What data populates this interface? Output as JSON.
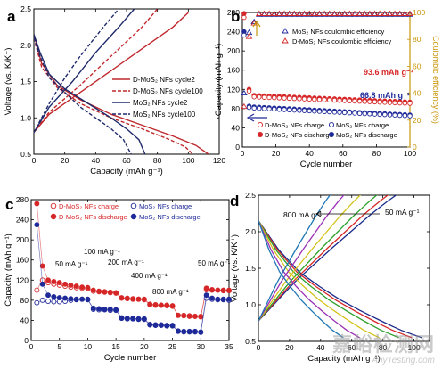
{
  "watermark": {
    "line1": "嘉峪检测网",
    "line2": "AnyTesting.com"
  },
  "chart_data": [
    {
      "panel": "a",
      "type": "line",
      "xlabel": "Capacity (mAh g⁻¹)",
      "ylabel": "Voltage (vs. K/K⁺)",
      "xlim": [
        0,
        120
      ],
      "ylim": [
        0.5,
        2.5
      ],
      "xticks": [
        0,
        20,
        40,
        60,
        80,
        100,
        120
      ],
      "yticks": [
        0.5,
        1.0,
        1.5,
        2.0,
        2.5
      ],
      "legend_position": "right",
      "series": [
        {
          "name": "D-MoS₂ NFs cycle2",
          "color": "#c0282d",
          "dash": false,
          "discharge": [
            [
              0,
              2.15
            ],
            [
              5,
              1.75
            ],
            [
              15,
              1.45
            ],
            [
              30,
              1.25
            ],
            [
              50,
              1.05
            ],
            [
              70,
              0.9
            ],
            [
              90,
              0.75
            ],
            [
              105,
              0.62
            ],
            [
              113,
              0.5
            ]
          ],
          "charge": [
            [
              0,
              0.8
            ],
            [
              10,
              1.05
            ],
            [
              30,
              1.35
            ],
            [
              50,
              1.65
            ],
            [
              70,
              1.95
            ],
            [
              90,
              2.25
            ],
            [
              100,
              2.45
            ]
          ]
        },
        {
          "name": "D-MoS₂ NFs cycle100",
          "color": "#c0282d",
          "dash": true,
          "discharge": [
            [
              0,
              2.1
            ],
            [
              5,
              1.7
            ],
            [
              15,
              1.42
            ],
            [
              30,
              1.2
            ],
            [
              50,
              1.0
            ],
            [
              70,
              0.85
            ],
            [
              88,
              0.7
            ],
            [
              98,
              0.6
            ],
            [
              103,
              0.5
            ]
          ],
          "charge": [
            [
              0,
              0.8
            ],
            [
              10,
              1.08
            ],
            [
              30,
              1.45
            ],
            [
              50,
              1.85
            ],
            [
              70,
              2.25
            ],
            [
              80,
              2.5
            ]
          ]
        },
        {
          "name": "MoS₂ NFs cycle2",
          "color": "#1f2a6b",
          "dash": false,
          "discharge": [
            [
              0,
              2.15
            ],
            [
              4,
              1.9
            ],
            [
              10,
              1.6
            ],
            [
              20,
              1.4
            ],
            [
              35,
              1.2
            ],
            [
              50,
              1.0
            ],
            [
              60,
              0.85
            ],
            [
              68,
              0.7
            ],
            [
              72,
              0.5
            ]
          ],
          "charge": [
            [
              0,
              0.8
            ],
            [
              10,
              1.15
            ],
            [
              25,
              1.5
            ],
            [
              40,
              1.9
            ],
            [
              55,
              2.25
            ],
            [
              65,
              2.5
            ]
          ]
        },
        {
          "name": "MoS₂ NFs cycle100",
          "color": "#1f2a6b",
          "dash": true,
          "discharge": [
            [
              0,
              2.1
            ],
            [
              4,
              1.85
            ],
            [
              10,
              1.55
            ],
            [
              20,
              1.35
            ],
            [
              30,
              1.15
            ],
            [
              40,
              1.0
            ],
            [
              50,
              0.85
            ],
            [
              58,
              0.7
            ],
            [
              63,
              0.5
            ]
          ],
          "charge": [
            [
              0,
              0.8
            ],
            [
              10,
              1.2
            ],
            [
              20,
              1.55
            ],
            [
              30,
              1.85
            ],
            [
              45,
              2.25
            ],
            [
              55,
              2.5
            ]
          ]
        }
      ]
    },
    {
      "panel": "b",
      "type": "scatter",
      "xlabel": "Cycle number",
      "ylabel": "Capacity (mAh g⁻¹)",
      "y2label": "Coulombic efficiency (%)",
      "xlim": [
        0,
        100
      ],
      "ylim": [
        0,
        280
      ],
      "y2lim": [
        0,
        100
      ],
      "xticks": [
        0,
        20,
        40,
        60,
        80,
        100
      ],
      "yticks": [
        0,
        40,
        80,
        120,
        160,
        200,
        240,
        280
      ],
      "y2ticks": [
        0,
        20,
        40,
        60,
        80,
        100
      ],
      "annotations": [
        "93.6 mAh g⁻¹",
        "66.8 mAh g⁻¹"
      ],
      "annotation_colors": [
        "#d62728",
        "#1f2a99"
      ],
      "legend_top": [
        "MoS₂ NFs coulombic efficiency",
        "D-MoS₂ NFs coulombic efficiency"
      ],
      "series": [
        {
          "name": "D-MoS₂ NFs charge",
          "marker": "circle-open",
          "color": "#d62728"
        },
        {
          "name": "D-MoS₂ NFs discharge",
          "marker": "circle-filled",
          "color": "#d62728"
        },
        {
          "name": "MoS₂ NFs charge",
          "marker": "circle-open",
          "color": "#1f2a99"
        },
        {
          "name": "MoS₂ NFs discharge",
          "marker": "circle-filled",
          "color": "#1f2a99"
        }
      ],
      "cycles": {
        "start": 1,
        "end": 100,
        "step": 3
      },
      "capacity_D": {
        "first": 278,
        "second": 120,
        "level_start": 108,
        "level_end": 93.6
      },
      "capacity_M": {
        "first": 240,
        "second": 85,
        "level_start": 84,
        "level_end": 66.8
      },
      "ce_D": {
        "first": 30,
        "second": 82,
        "third": 92,
        "level": 99
      },
      "ce_M": {
        "first": 40,
        "second": 85,
        "third": 93,
        "level": 98.5
      }
    },
    {
      "panel": "c",
      "type": "scatter",
      "xlabel": "Cycle number",
      "ylabel": "Capacity (mAh g⁻¹)",
      "xlim": [
        0,
        35
      ],
      "ylim": [
        0,
        280
      ],
      "xticks": [
        0,
        5,
        10,
        15,
        20,
        25,
        30,
        35
      ],
      "yticks": [
        0,
        40,
        80,
        120,
        160,
        200,
        240,
        280
      ],
      "rate_labels": [
        "50 mA g⁻¹",
        "100 mA g⁻¹",
        "200 mA g⁻¹",
        "400 mA g⁻¹",
        "800 mA g⁻¹",
        "50 mA g⁻¹"
      ],
      "series": [
        {
          "name": "D-MoS₂ NFs charge",
          "marker": "circle-open",
          "color": "#d62728"
        },
        {
          "name": "D-MoS₂ NFs discharge",
          "marker": "circle-filled",
          "color": "#d62728"
        },
        {
          "name": "MoS₂ NFs charge",
          "marker": "circle-open",
          "color": "#1f2a99"
        },
        {
          "name": "MoS₂ NFs discharge",
          "marker": "circle-filled",
          "color": "#1f2a99"
        }
      ],
      "cycles": [
        1,
        2,
        3,
        4,
        5,
        6,
        7,
        8,
        9,
        10,
        11,
        12,
        13,
        14,
        15,
        16,
        17,
        18,
        19,
        20,
        21,
        22,
        23,
        24,
        25,
        26,
        27,
        28,
        29,
        30,
        31,
        32,
        33,
        34,
        35
      ],
      "D_discharge": [
        272,
        148,
        120,
        117,
        115,
        112,
        110,
        108,
        106,
        105,
        100,
        98,
        97,
        96,
        95,
        85,
        84,
        83,
        82,
        82,
        72,
        71,
        70,
        70,
        69,
        50,
        50,
        49,
        48,
        48,
        104,
        101,
        100,
        100,
        100
      ],
      "D_charge": [
        100,
        120,
        115,
        112,
        110,
        108,
        106,
        105,
        104,
        103,
        98,
        97,
        96,
        95,
        94,
        84,
        83,
        82,
        82,
        81,
        71,
        70,
        70,
        69,
        68,
        50,
        49,
        48,
        48,
        47,
        101,
        100,
        100,
        99,
        99
      ],
      "M_discharge": [
        230,
        112,
        90,
        87,
        85,
        84,
        83,
        82,
        82,
        81,
        64,
        63,
        62,
        62,
        61,
        45,
        44,
        44,
        43,
        43,
        32,
        31,
        31,
        30,
        30,
        19,
        18,
        18,
        18,
        17,
        90,
        84,
        82,
        82,
        82
      ],
      "M_charge": [
        75,
        80,
        78,
        77,
        77,
        78,
        80,
        81,
        82,
        82,
        62,
        61,
        61,
        60,
        60,
        44,
        43,
        43,
        42,
        42,
        31,
        30,
        30,
        29,
        29,
        18,
        17,
        17,
        17,
        16,
        84,
        82,
        81,
        81,
        80
      ]
    },
    {
      "panel": "d",
      "type": "line",
      "xlabel": "Capacity (mAh g⁻¹)",
      "ylabel": "Voltage (vs. K/K⁺)",
      "xlim": [
        0,
        110
      ],
      "ylim": [
        0.5,
        2.5
      ],
      "xticks": [
        0,
        20,
        40,
        60,
        80,
        100
      ],
      "yticks": [
        0.5,
        1.0,
        1.5,
        2.0,
        2.5
      ],
      "annotations": [
        "800 mA g⁻¹",
        "50 mA g⁻¹"
      ],
      "series": [
        {
          "color": "#1a2a8c",
          "capacity": 100
        },
        {
          "color": "#d62728",
          "capacity": 94
        },
        {
          "color": "#2ca02c",
          "capacity": 86
        },
        {
          "color": "#d4c21a",
          "capacity": 74
        },
        {
          "color": "#9a30b5",
          "capacity": 62
        },
        {
          "color": "#1f77b4",
          "capacity": 52
        }
      ]
    }
  ]
}
